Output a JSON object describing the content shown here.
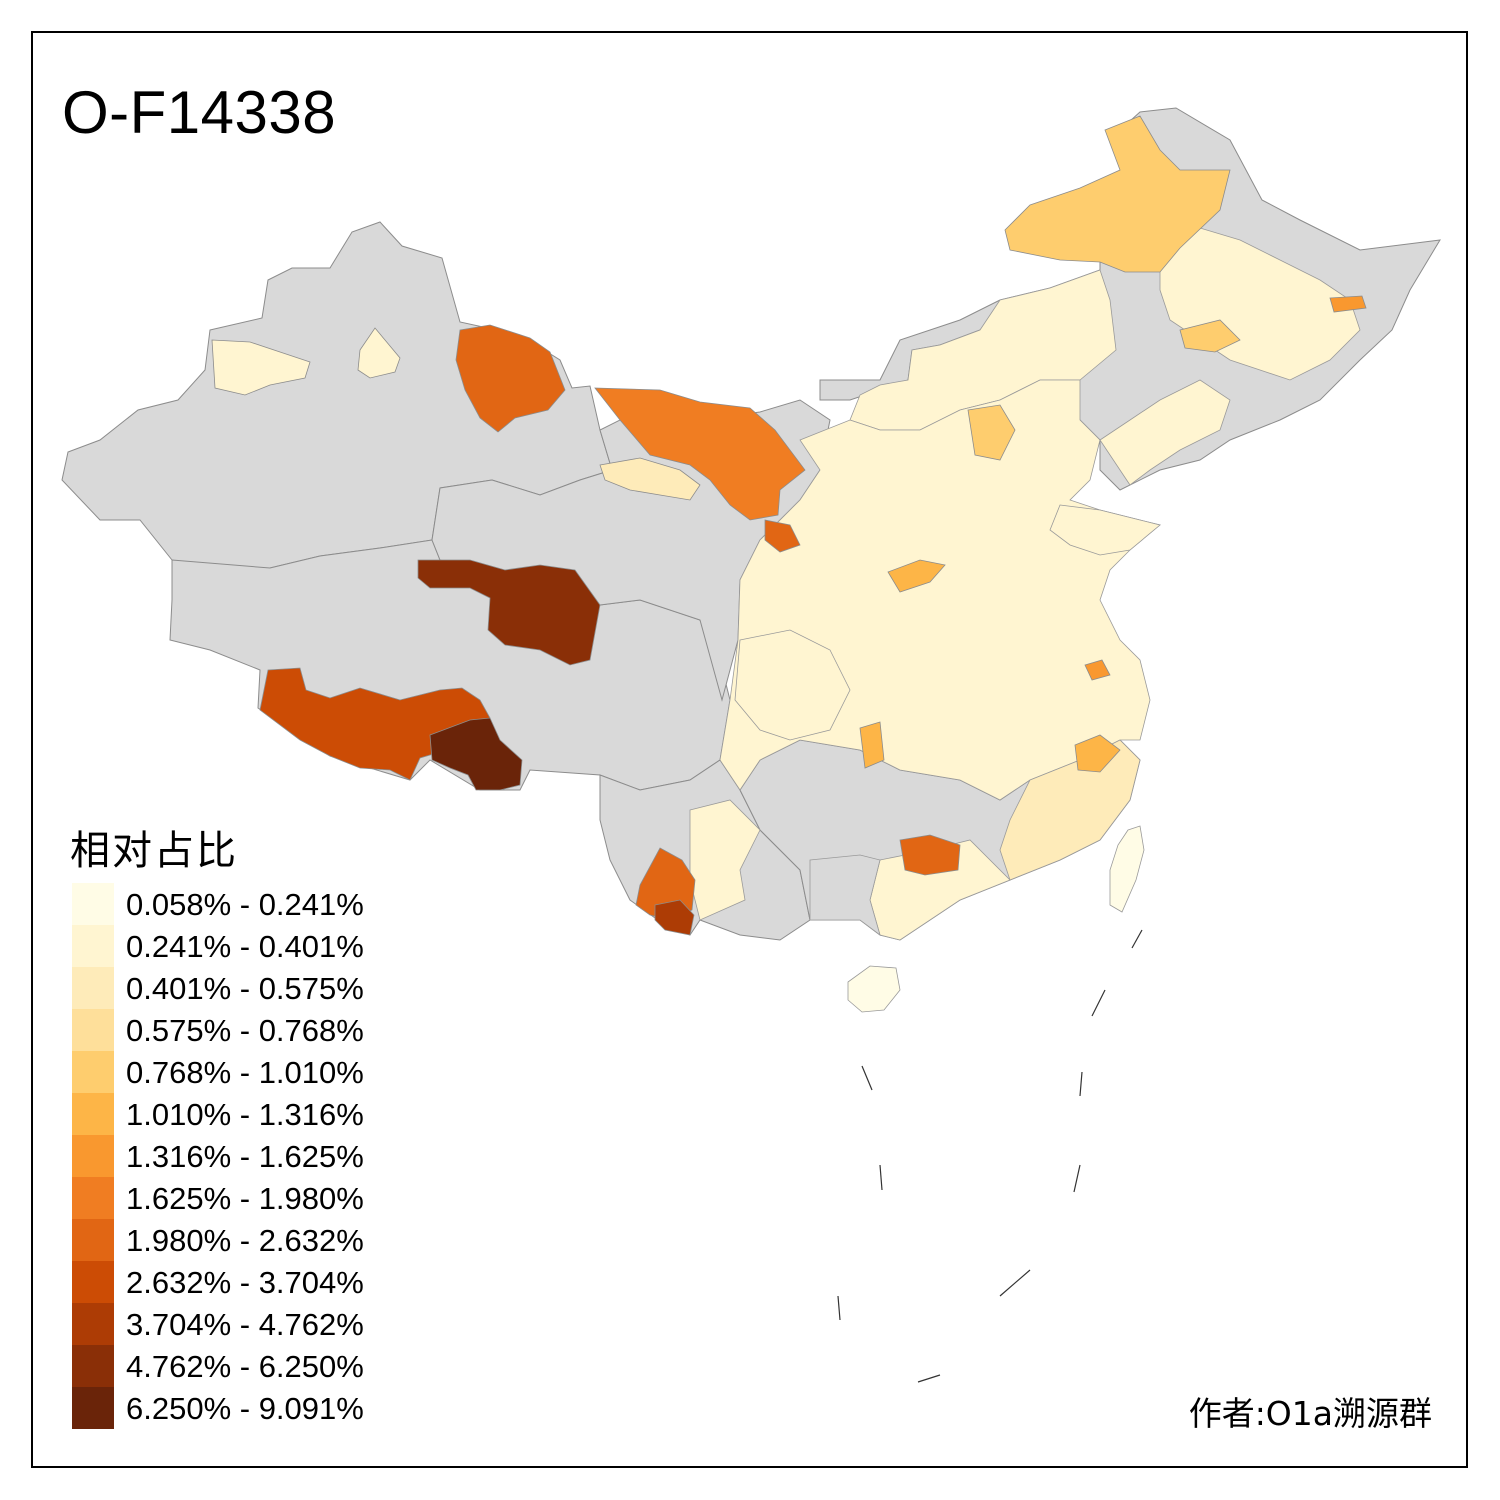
{
  "title": "O-F14338",
  "legend": {
    "title": "相对占比",
    "classes": [
      {
        "label": "0.058% - 0.241%",
        "color": "#FFFCE6"
      },
      {
        "label": "0.241% - 0.401%",
        "color": "#FFF5D1"
      },
      {
        "label": "0.401% - 0.575%",
        "color": "#FEEBB9"
      },
      {
        "label": "0.575% - 0.768%",
        "color": "#FEDF9A"
      },
      {
        "label": "0.768% - 1.010%",
        "color": "#FECD6E"
      },
      {
        "label": "1.010% - 1.316%",
        "color": "#FDB547"
      },
      {
        "label": "1.316% - 1.625%",
        "color": "#F9982F"
      },
      {
        "label": "1.625% - 1.980%",
        "color": "#F07D22"
      },
      {
        "label": "1.980% - 2.632%",
        "color": "#E16614"
      },
      {
        "label": "2.632% - 3.704%",
        "color": "#CC4C05"
      },
      {
        "label": "3.704% - 4.762%",
        "color": "#AD3C05"
      },
      {
        "label": "4.762% - 6.250%",
        "color": "#8A2F07"
      },
      {
        "label": "6.250% - 9.091%",
        "color": "#6A2409"
      }
    ]
  },
  "author": "作者:O1a溯源群",
  "colors": {
    "no_data": "#D9D9D9",
    "border": "#8C8C8C",
    "frame": "#000000"
  }
}
